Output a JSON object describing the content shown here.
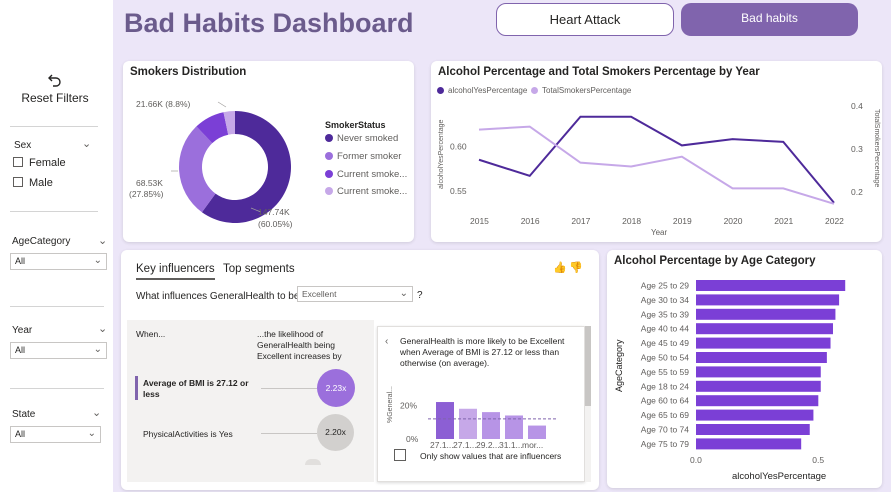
{
  "header": {
    "title": "Bad Habits Dashboard"
  },
  "nav": {
    "heart_attack": "Heart Attack",
    "bad_habits": "Bad habits"
  },
  "colors": {
    "accent": "#8064ad",
    "dark_purple": "#4e2a9a",
    "mid_purple": "#8c5fd4",
    "light_purple": "#c6a8e8",
    "bar_purple": "#7b3fd6"
  },
  "sidebar": {
    "reset_label": "Reset Filters",
    "reset_icon": "undo-icon",
    "sex": {
      "label": "Sex",
      "options": [
        "Female",
        "Male"
      ]
    },
    "age_category": {
      "label": "AgeCategory",
      "value": "All"
    },
    "year": {
      "label": "Year",
      "value": "All"
    },
    "state": {
      "label": "State",
      "value": "All"
    }
  },
  "smokers": {
    "title": "Smokers Distribution",
    "legend_title": "SmokerStatus",
    "legend": [
      "Never smoked",
      "Former smoker",
      "Current smoke...",
      "Current smoke..."
    ],
    "labels": {
      "top": "21.66K (8.8%)",
      "left_value": "68.53K",
      "left_pct": "(27.85%)",
      "right_value": "147.74K",
      "right_pct": "(60.05%)"
    }
  },
  "line_chart": {
    "title": "Alcohol Percentage and Total Smokers Percentage by Year",
    "legend": [
      "alcoholYesPercentage",
      "TotalSmokersPercentage"
    ],
    "left_axis": "alcoholYesPercentage",
    "right_axis": "TotalSmokersPercentage",
    "x_axis": "Year",
    "left_ticks": [
      "0.60",
      "0.55"
    ],
    "right_ticks": [
      "0.4",
      "0.3",
      "0.2"
    ],
    "years": [
      "2015",
      "2016",
      "2017",
      "2018",
      "2019",
      "2020",
      "2021",
      "2022"
    ]
  },
  "chart_data": [
    {
      "type": "pie",
      "title": "Smokers Distribution",
      "categories": [
        "Never smoked",
        "Former smoker",
        "Current smoke...",
        "Current smoke..."
      ],
      "values": [
        147.74,
        68.53,
        21.66,
        8.1
      ],
      "units": "K"
    },
    {
      "type": "line",
      "title": "Alcohol Percentage and Total Smokers Percentage by Year",
      "x": [
        2015,
        2016,
        2017,
        2018,
        2019,
        2020,
        2021,
        2022
      ],
      "series": [
        {
          "name": "alcoholYesPercentage",
          "axis": "left",
          "values": [
            0.585,
            0.567,
            0.633,
            0.633,
            0.601,
            0.608,
            0.605,
            0.537
          ]
        },
        {
          "name": "TotalSmokersPercentage",
          "axis": "right",
          "values": [
            0.345,
            0.352,
            0.268,
            0.259,
            0.282,
            0.208,
            0.208,
            0.172
          ]
        }
      ],
      "ylim_left": [
        0.53,
        0.645
      ],
      "ylim_right": [
        0.16,
        0.4
      ]
    },
    {
      "type": "bar",
      "title": "Alcohol Percentage by Age Category",
      "orientation": "horizontal",
      "categories": [
        "Age 25 to 29",
        "Age 30 to 34",
        "Age 35 to 39",
        "Age 40 to 44",
        "Age 45 to 49",
        "Age 50 to 54",
        "Age 55 to 59",
        "Age 18 to 24",
        "Age 60 to 64",
        "Age 65 to 69",
        "Age 70 to 74",
        "Age 75 to 79"
      ],
      "values": [
        0.61,
        0.585,
        0.57,
        0.56,
        0.55,
        0.535,
        0.51,
        0.51,
        0.5,
        0.48,
        0.465,
        0.43
      ],
      "xlabel": "alcoholYesPercentage",
      "ylabel": "AgeCategory",
      "xlim": [
        0,
        0.65
      ],
      "x_ticks": [
        "0.0",
        "0.5"
      ]
    }
  ],
  "influencers": {
    "tab_key": "Key influencers",
    "tab_top": "Top segments",
    "question": "What influences GeneralHealth to be",
    "question_value": "Excellent",
    "question_mark": "?",
    "col_when": "When...",
    "col_likelihood": "...the likelihood of GeneralHealth being Excellent increases by",
    "rows": [
      {
        "text": "Average of BMI is 27.12 or less",
        "factor": "2.23x"
      },
      {
        "text": "PhysicalActivities is Yes",
        "factor": "2.20x"
      }
    ],
    "detail_text": "GeneralHealth is more likely to be Excellent when Average of BMI is 27.12 or less than otherwise (on average).",
    "detail_ylabel": "%General...",
    "detail_ticks": [
      "20%",
      "0%"
    ],
    "detail_xlabels": [
      "27.1...",
      "27.1...",
      "29.2...",
      "31.1...",
      "mor..."
    ],
    "detail_values": [
      0.22,
      0.18,
      0.16,
      0.14,
      0.08
    ],
    "detail_avg": 0.12,
    "checkbox_label": "Only show values that are influencers"
  },
  "bar_chart": {
    "title": "Alcohol Percentage by Age Category"
  }
}
